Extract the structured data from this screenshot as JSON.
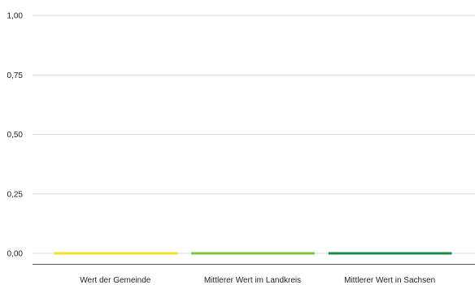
{
  "chart_data": {
    "type": "bar",
    "categories": [
      "Wert der Gemeinde",
      "Mittlerer Wert im Landkreis",
      "Mittlerer Wert in Sachsen"
    ],
    "values": [
      0,
      0,
      0
    ],
    "colors": [
      "#f5e028",
      "#7cc142",
      "#1f8a4c"
    ],
    "ylim": [
      0,
      1
    ],
    "yticks": [
      0,
      0.25,
      0.5,
      0.75,
      1
    ],
    "ytick_labels": [
      "0,00",
      "0,25",
      "0,50",
      "0,75",
      "1,00"
    ],
    "grid": true,
    "title": "",
    "xlabel": "",
    "ylabel": ""
  }
}
